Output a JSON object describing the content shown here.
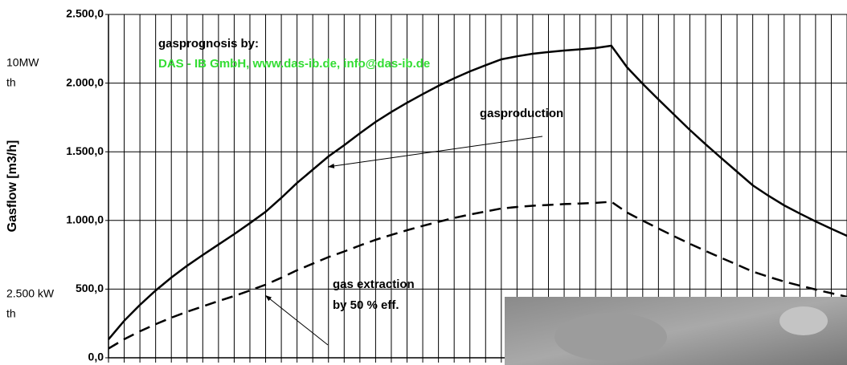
{
  "chart_data": {
    "type": "line",
    "y_label": "Gasflow [m3/h]",
    "categories": [
      null,
      null,
      null,
      null,
      null,
      null,
      null,
      null,
      null,
      null,
      null,
      null,
      null,
      null,
      null,
      null,
      null,
      null,
      null,
      null,
      null,
      null,
      null,
      null,
      null,
      null,
      null,
      null,
      null,
      null,
      null,
      null,
      null,
      null,
      null,
      null,
      null,
      null,
      null,
      null,
      null,
      null,
      null,
      null,
      null,
      null,
      null,
      null
    ],
    "series": [
      {
        "name": "gasproduction",
        "color": "#000000",
        "dash": false,
        "values": [
          134,
          270,
          385,
          490,
          584,
          670,
          748,
          825,
          900,
          980,
          1063,
          1165,
          1273,
          1370,
          1466,
          1548,
          1635,
          1717,
          1790,
          1857,
          1920,
          1980,
          2035,
          2085,
          2130,
          2173,
          2195,
          2214,
          2226,
          2237,
          2246,
          2255,
          2272,
          2115,
          1995,
          1881,
          1770,
          1659,
          1555,
          1454,
          1355,
          1256,
          1180,
          1110,
          1050,
          993,
          940,
          888
        ]
      },
      {
        "name": "gas extraction",
        "color": "#000000",
        "dash": true,
        "values": [
          67,
          135,
          193,
          245,
          292,
          335,
          374,
          413,
          450,
          490,
          532,
          583,
          637,
          685,
          733,
          774,
          818,
          859,
          895,
          929,
          960,
          990,
          1018,
          1043,
          1065,
          1087,
          1098,
          1107,
          1113,
          1119,
          1123,
          1128,
          1136,
          1058,
          998,
          941,
          885,
          830,
          778,
          727,
          678,
          628,
          590,
          555,
          525,
          497,
          470,
          444
        ]
      }
    ],
    "ylim": [
      0,
      2500
    ],
    "yticks": [
      {
        "value": 0,
        "label": "0,0"
      },
      {
        "value": 500,
        "label": "500,0"
      },
      {
        "value": 1000,
        "label": "1.000,0"
      },
      {
        "value": 1500,
        "label": "1.500,0"
      },
      {
        "value": 2000,
        "label": "2.000,0"
      },
      {
        "value": 2500,
        "label": "2.500,0"
      }
    ],
    "grid": true,
    "annotations": {
      "credit_title": "gasprognosis by:",
      "credit": "DAS - IB GmbH, www.das-ib.de, info@das-ib.de",
      "extraction_note": "by 50 % eff.",
      "top_power": "10MW",
      "top_unit": "th",
      "bottom_power": "2.500 kW",
      "bottom_unit": "th"
    },
    "credit_color": "#33dd33"
  }
}
